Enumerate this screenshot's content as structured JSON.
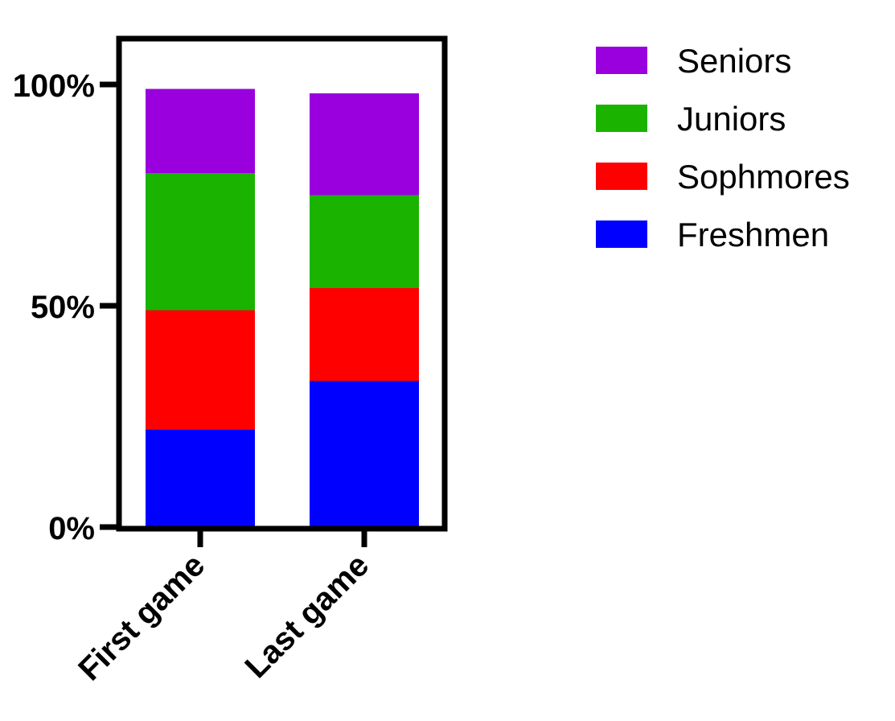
{
  "chart_data": {
    "type": "bar",
    "stacked": true,
    "categories": [
      "First game",
      "Last game"
    ],
    "series": [
      {
        "name": "Freshmen",
        "color": "#0000ff",
        "values": [
          22,
          33
        ]
      },
      {
        "name": "Sophmores",
        "color": "#ff0000",
        "values": [
          27,
          21
        ]
      },
      {
        "name": "Juniors",
        "color": "#1ab300",
        "values": [
          31,
          21
        ]
      },
      {
        "name": "Seniors",
        "color": "#9900dd",
        "values": [
          19,
          23
        ]
      }
    ],
    "legend_order": [
      "Seniors",
      "Juniors",
      "Sophmores",
      "Freshmen"
    ],
    "yticks": [
      "0%",
      "50%",
      "100%"
    ],
    "ytick_values": [
      0,
      50,
      100
    ],
    "ylim": [
      0,
      110
    ],
    "title": "",
    "xlabel": "",
    "ylabel": "",
    "legend_position": "right",
    "grid": false
  }
}
